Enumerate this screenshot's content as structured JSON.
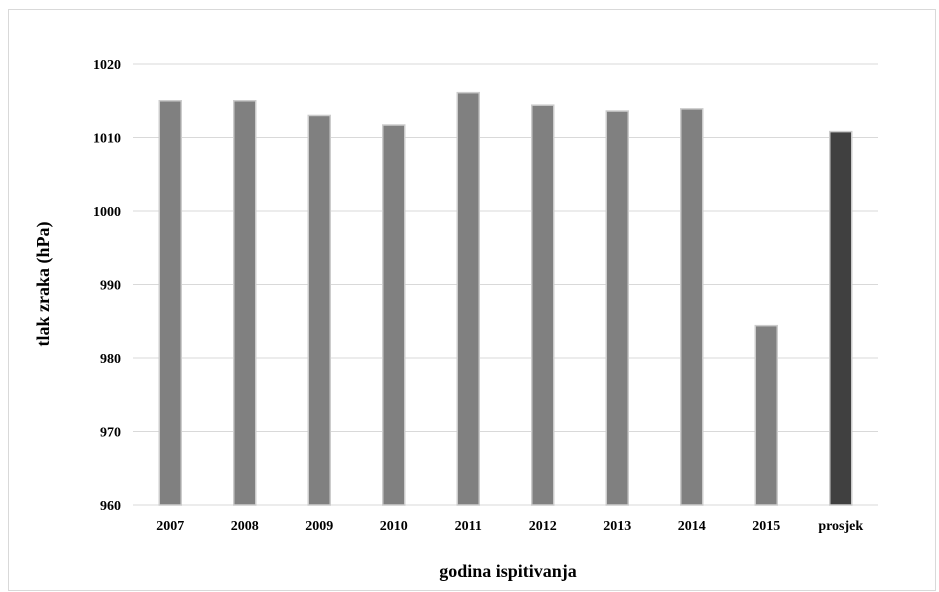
{
  "chart_data": {
    "type": "bar",
    "title": "",
    "xlabel": "godina ispitivanja",
    "ylabel": "tlak zraka (hPa)",
    "categories": [
      "2007",
      "2008",
      "2009",
      "2010",
      "2011",
      "2012",
      "2013",
      "2014",
      "2015",
      "prosjek"
    ],
    "values": [
      1015.0,
      1015.0,
      1013.0,
      1011.7,
      1016.1,
      1014.4,
      1013.6,
      1013.9,
      984.4,
      1010.8
    ],
    "ylim": [
      960,
      1020
    ],
    "yticks": [
      960,
      970,
      980,
      990,
      1000,
      1010,
      1020
    ],
    "grid": true,
    "legend": "none",
    "colors": {
      "bar": "#808080",
      "bar_highlight": "#404040",
      "bar_edge": "#cccccc",
      "grid": "#d9d9d9"
    },
    "highlight_category": "prosjek"
  }
}
